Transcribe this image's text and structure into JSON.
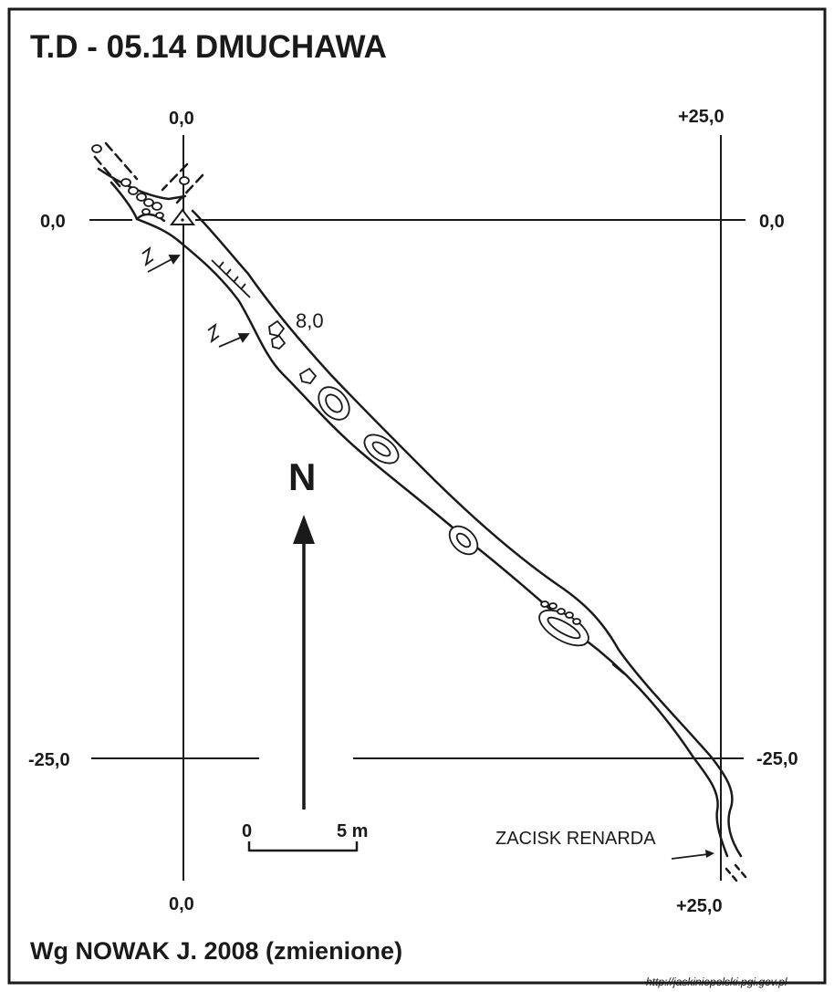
{
  "map": {
    "title": "T.D - 05.14 DMUCHAWA",
    "grid_labels": {
      "top_left": "0,0",
      "top_right": "+25,0",
      "left_top": "0,0",
      "right_top": "0,0",
      "left_bottom": "-25,0",
      "right_bottom": "-25,0",
      "bottom_left": "0,0",
      "bottom_right": "+25,0"
    },
    "depth_label": "8,0",
    "north_label": "N",
    "scale": {
      "start": "0",
      "end": "5 m"
    },
    "annotation": "ZACISK RENARDA",
    "credit": "Wg  NOWAK J. 2008 (zmienione)",
    "source_url": "http://jaskiniepolski.pgi.gov.pl",
    "stroke_color": "#1a1a1a",
    "background_color": "#ffffff"
  }
}
